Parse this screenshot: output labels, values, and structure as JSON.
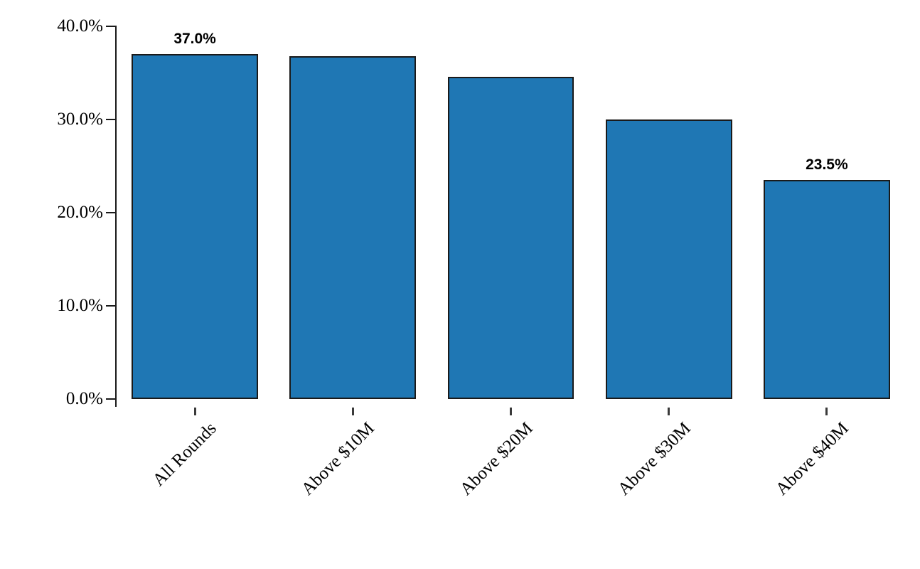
{
  "chart_data": {
    "type": "bar",
    "categories": [
      "All Rounds",
      "Above $10M",
      "Above $20M",
      "Above $30M",
      "Above $40M"
    ],
    "values": [
      37.0,
      36.8,
      34.6,
      30.0,
      23.5
    ],
    "bar_labels": [
      "37.0%",
      null,
      null,
      null,
      "23.5%"
    ],
    "title": "",
    "xlabel": "",
    "ylabel": "",
    "ylim": [
      0,
      40
    ],
    "ytick_values": [
      0,
      10,
      20,
      30,
      40
    ],
    "ytick_labels": [
      "0.0%",
      "10.0%",
      "20.0%",
      "30.0%",
      "40.0%"
    ],
    "grid": false,
    "legend": false,
    "bar_color": "#1f77b4",
    "bar_edge_color": "#1a1a1a",
    "axis_color": "#1a1a1a",
    "xtick_color": "#3a3a3a",
    "text_color": "#000000"
  }
}
